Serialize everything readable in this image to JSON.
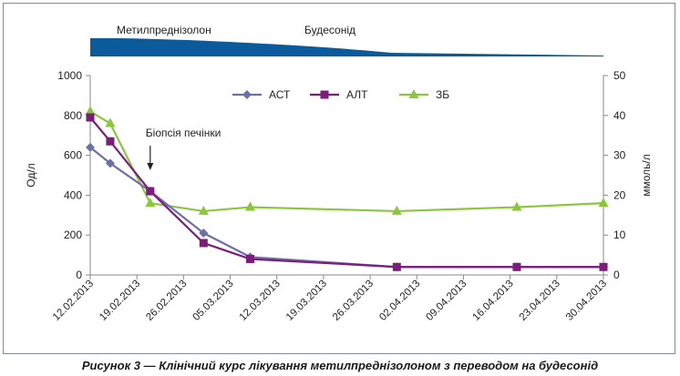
{
  "caption": "Рисунок 3 — Клінічний курс лікування метилпреднізолоном з переводом на будесонід",
  "treatment": {
    "drug1": "Метилпреднізолон",
    "drug2": "Будесонід",
    "color": "#0a5a9c"
  },
  "chart_data": {
    "type": "line",
    "ylabel_left": "Од/л",
    "ylabel_right": "ммоль/л",
    "ylim_left": [
      0,
      1000
    ],
    "ylim_right": [
      0,
      50
    ],
    "yticks_left": [
      "0",
      "200",
      "400",
      "600",
      "800",
      "1000"
    ],
    "yticks_right": [
      "0",
      "10",
      "20",
      "30",
      "40",
      "50"
    ],
    "x_tick_labels": [
      "12.02.2013",
      "19.02.2013",
      "26.02.2013",
      "05.03.2013",
      "12.03.2013",
      "19.03.2013",
      "26.03.2013",
      "02.04.2013",
      "09.04.2013",
      "16.04.2013",
      "23.04.2013",
      "30.04.2013"
    ],
    "x_range": [
      "2013-02-12",
      "2013-04-30"
    ],
    "annotation": {
      "text": "Біопсія печінки",
      "date": "2013-02-21"
    },
    "legend_position": "top-center",
    "grid": false,
    "series": [
      {
        "name": "АСТ",
        "axis": "left",
        "color": "#6f6fa8",
        "marker": "diamond",
        "points": [
          [
            "2013-02-12",
            640
          ],
          [
            "2013-02-15",
            560
          ],
          [
            "2013-02-21",
            420
          ],
          [
            "2013-03-01",
            210
          ],
          [
            "2013-03-08",
            90
          ],
          [
            "2013-03-30",
            40
          ],
          [
            "2013-04-17",
            40
          ],
          [
            "2013-04-30",
            40
          ]
        ]
      },
      {
        "name": "АЛТ",
        "axis": "left",
        "color": "#7b1e7a",
        "marker": "square",
        "points": [
          [
            "2013-02-12",
            790
          ],
          [
            "2013-02-15",
            670
          ],
          [
            "2013-02-21",
            420
          ],
          [
            "2013-03-01",
            160
          ],
          [
            "2013-03-08",
            80
          ],
          [
            "2013-03-30",
            40
          ],
          [
            "2013-04-17",
            40
          ],
          [
            "2013-04-30",
            40
          ]
        ]
      },
      {
        "name": "ЗБ",
        "axis": "right",
        "color": "#8cc63f",
        "marker": "triangle",
        "points": [
          [
            "2013-02-12",
            41
          ],
          [
            "2013-02-15",
            38
          ],
          [
            "2013-02-21",
            18
          ],
          [
            "2013-03-01",
            16
          ],
          [
            "2013-03-08",
            17
          ],
          [
            "2013-03-30",
            16
          ],
          [
            "2013-04-17",
            17
          ],
          [
            "2013-04-30",
            18
          ]
        ]
      }
    ]
  }
}
